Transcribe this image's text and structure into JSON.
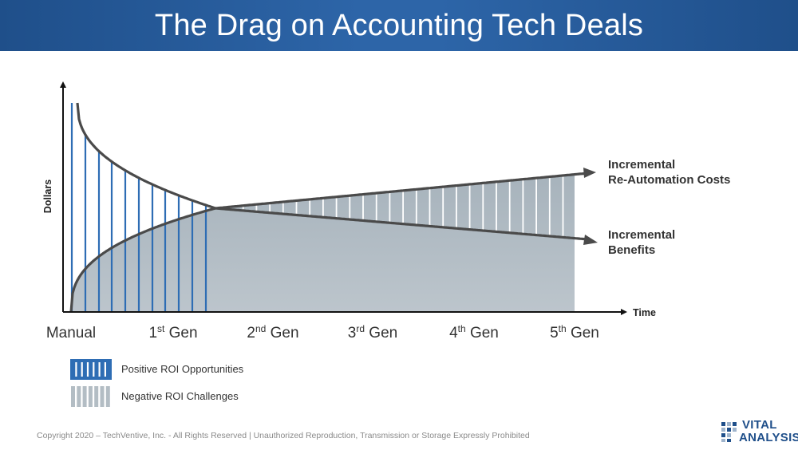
{
  "header": {
    "title": "The Drag on Accounting Tech Deals"
  },
  "chart_data": {
    "type": "area",
    "title": "The Drag on Accounting Tech Deals",
    "ylabel": "Dollars",
    "xlabel": "Time",
    "x_categories": [
      {
        "base": "Manual",
        "sup": "",
        "tail": ""
      },
      {
        "base": "1",
        "sup": "st",
        "tail": " Gen"
      },
      {
        "base": "2",
        "sup": "nd",
        "tail": " Gen"
      },
      {
        "base": "3",
        "sup": "rd",
        "tail": " Gen"
      },
      {
        "base": "4",
        "sup": "th",
        "tail": " Gen"
      },
      {
        "base": "5",
        "sup": "th",
        "tail": " Gen"
      }
    ],
    "x_range": [
      0,
      5
    ],
    "y_range": [
      0,
      1
    ],
    "crossover_x": 1.42,
    "series": [
      {
        "name": "Incremental Benefits",
        "label_lines": [
          "Incremental",
          "Benefits"
        ],
        "shape": "decreasing"
      },
      {
        "name": "Incremental Re-Automation Costs",
        "label_lines": [
          "Incremental",
          "Re-Automation Costs"
        ],
        "shape": "increasing"
      }
    ],
    "legend": [
      {
        "label": "Positive ROI Opportunities",
        "color": "#2e6db4"
      },
      {
        "label": "Negative ROI Challenges",
        "color": "#b3bdc4"
      }
    ],
    "colors": {
      "benefit_area": "#2e6db4",
      "cost_area": "#b3bdc4",
      "curve": "#4a4a4a",
      "axis": "#111111"
    }
  },
  "footer": {
    "copyright": "Copyright 2020 – TechVentive, Inc. - All Rights Reserved | Unauthorized Reproduction, Transmission or Storage Expressly Prohibited"
  },
  "logo": {
    "line1": "VITAL",
    "line2": "ANALYSIS",
    "color": "#1f4f8a"
  }
}
